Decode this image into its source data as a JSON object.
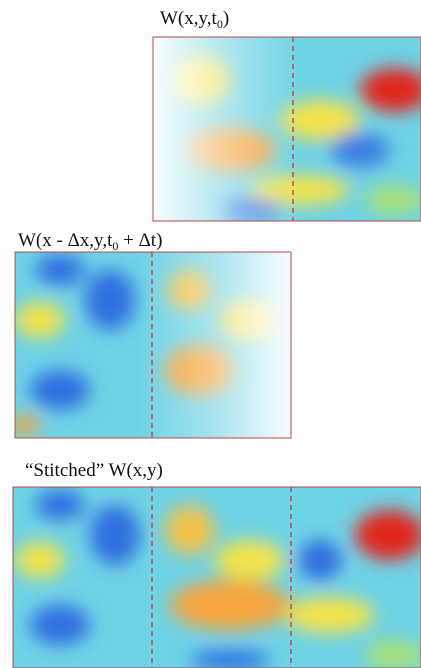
{
  "panels": [
    {
      "label": {
        "main": "W(x,y,t",
        "sub": "0",
        "end": ")"
      }
    },
    {
      "label": {
        "main": "W(x - Δx,y,t",
        "sub": "0",
        "end": " + Δt)"
      }
    },
    {
      "label": {
        "main": "“Stitched” W(x,y)"
      }
    }
  ]
}
